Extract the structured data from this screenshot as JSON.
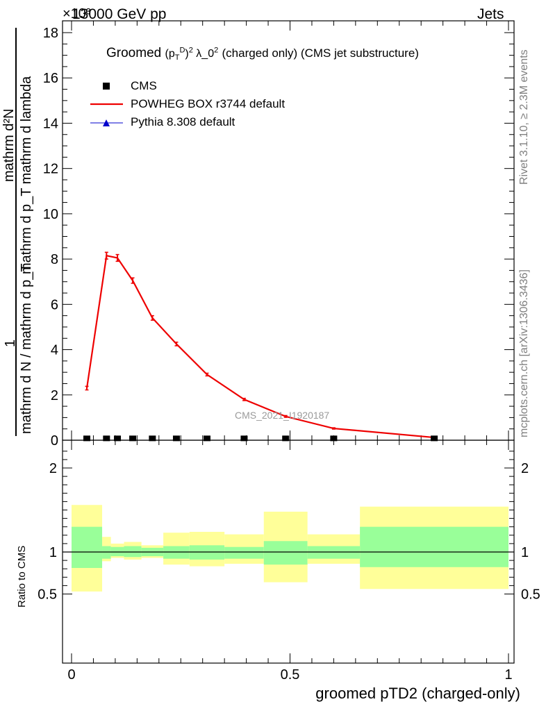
{
  "header": {
    "left": "13000 GeV pp",
    "right": "Jets",
    "exponent": "×10³"
  },
  "side": {
    "rivet": "Rivet 3.1.10, ≥ 2.3M events",
    "mcplots": "mcplots.cern.ch [arXiv:1306.3436]"
  },
  "chart_data": [
    {
      "type": "line",
      "title_main": "Groomed",
      "title_formula": "(p_T^D)^2 λ_0^2",
      "title_rest": "(charged only) (CMS jet substructure)",
      "watermark": "CMS_2021_I1920187",
      "ylabel": "1 / (mathrm d N / mathrm d p_T)  ·  mathrm d^2N / (mathrm d p_T mathrm d lambda)",
      "ylabel_numerator_top": "1",
      "ylabel_denominator_top": "mathrm d N / mathrm d p_T",
      "ylabel_numerator": "mathrm d²N",
      "ylabel_denominator": "mathrm d p_T mathrm d lambda",
      "y_scale_factor": 1000,
      "ylim": [
        0,
        18.5
      ],
      "xlim": [
        0,
        1
      ],
      "yticks": [
        0,
        2,
        4,
        6,
        8,
        10,
        12,
        14,
        16,
        18
      ],
      "ytick_labels": [
        "0",
        "2",
        "4",
        "6",
        "8",
        "10",
        "12",
        "14",
        "16",
        "18"
      ],
      "legend": [
        {
          "label": "CMS",
          "color": "#000000",
          "marker": "square"
        },
        {
          "label": "POWHEG BOX r3744 default",
          "color": "#ee0000",
          "marker": "line"
        },
        {
          "label": "Pythia 8.308 default",
          "color": "#0000cc",
          "marker": "triangle"
        }
      ],
      "series": [
        {
          "name": "CMS",
          "x": [
            0.035,
            0.08,
            0.105,
            0.14,
            0.185,
            0.24,
            0.31,
            0.395,
            0.49,
            0.6,
            0.83
          ],
          "y": [
            0.02,
            0.02,
            0.02,
            0.02,
            0.02,
            0.02,
            0.02,
            0.02,
            0.02,
            0.02,
            0.02
          ]
        },
        {
          "name": "POWHEG BOX r3744 default",
          "x": [
            0.035,
            0.08,
            0.105,
            0.14,
            0.185,
            0.24,
            0.31,
            0.395,
            0.49,
            0.6,
            0.83
          ],
          "y": [
            2.3,
            8.15,
            8.05,
            7.05,
            5.4,
            4.25,
            2.9,
            1.8,
            1.05,
            0.52,
            0.12
          ],
          "yerr": [
            0.08,
            0.15,
            0.15,
            0.12,
            0.1,
            0.08,
            0.06,
            0.05,
            0.04,
            0.03,
            0.02
          ]
        }
      ]
    },
    {
      "type": "area",
      "ylabel": "Ratio to CMS",
      "xlabel": "groomed pTD2 (charged-only)",
      "xlim": [
        0,
        1
      ],
      "ylim": [
        0.35,
        2.3
      ],
      "yticks": [
        0.5,
        1,
        2
      ],
      "ytick_labels": [
        "0.5",
        "1",
        "2"
      ],
      "xticks": [
        0,
        0.5,
        1
      ],
      "xtick_labels": [
        "0",
        "0.5",
        "1"
      ],
      "band_colors": {
        "inner": "#99ff99",
        "outer": "#ffff99"
      },
      "bins": [
        {
          "x0": 0.0,
          "x1": 0.07,
          "inner": [
            0.81,
            1.3
          ],
          "outer": [
            0.53,
            1.56
          ]
        },
        {
          "x0": 0.07,
          "x1": 0.09,
          "inner": [
            0.92,
            1.07
          ],
          "outer": [
            0.89,
            1.18
          ]
        },
        {
          "x0": 0.09,
          "x1": 0.12,
          "inner": [
            0.95,
            1.06
          ],
          "outer": [
            0.93,
            1.1
          ]
        },
        {
          "x0": 0.12,
          "x1": 0.16,
          "inner": [
            0.94,
            1.07
          ],
          "outer": [
            0.91,
            1.12
          ]
        },
        {
          "x0": 0.16,
          "x1": 0.21,
          "inner": [
            0.95,
            1.05
          ],
          "outer": [
            0.93,
            1.08
          ]
        },
        {
          "x0": 0.21,
          "x1": 0.27,
          "inner": [
            0.92,
            1.07
          ],
          "outer": [
            0.85,
            1.23
          ]
        },
        {
          "x0": 0.27,
          "x1": 0.35,
          "inner": [
            0.91,
            1.08
          ],
          "outer": [
            0.83,
            1.24
          ]
        },
        {
          "x0": 0.35,
          "x1": 0.44,
          "inner": [
            0.92,
            1.06
          ],
          "outer": [
            0.86,
            1.21
          ]
        },
        {
          "x0": 0.44,
          "x1": 0.54,
          "inner": [
            0.85,
            1.13
          ],
          "outer": [
            0.64,
            1.48
          ]
        },
        {
          "x0": 0.54,
          "x1": 0.66,
          "inner": [
            0.92,
            1.07
          ],
          "outer": [
            0.86,
            1.21
          ]
        },
        {
          "x0": 0.66,
          "x1": 1.0,
          "inner": [
            0.82,
            1.3
          ],
          "outer": [
            0.56,
            1.54
          ]
        }
      ]
    }
  ]
}
